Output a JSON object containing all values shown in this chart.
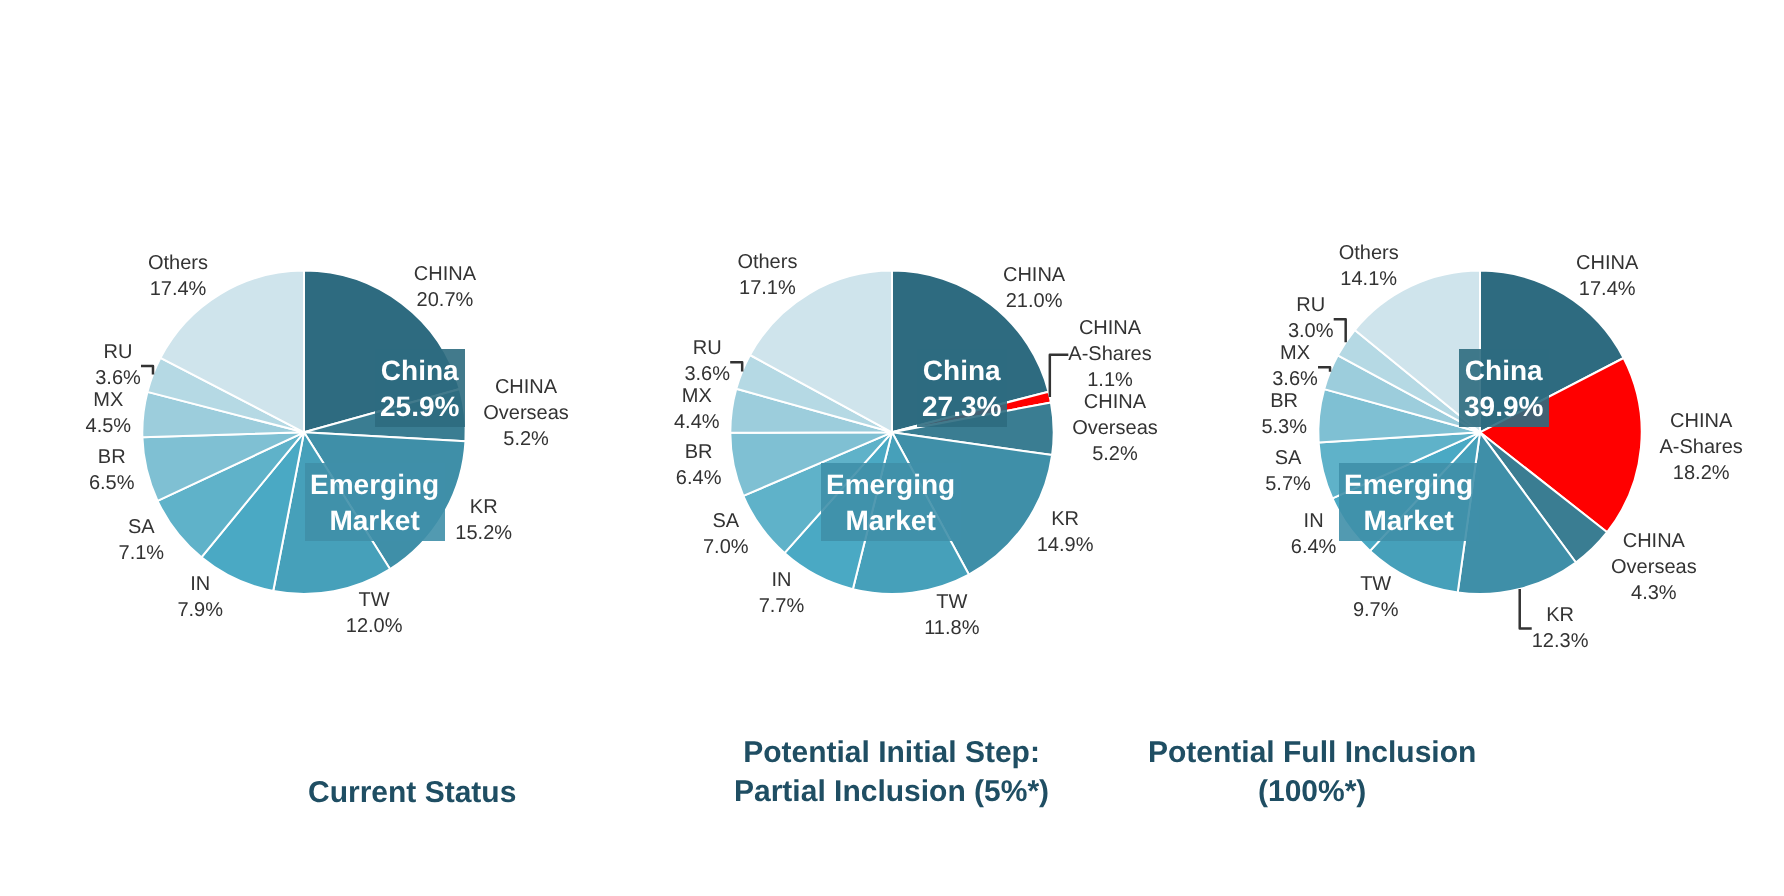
{
  "chart_data": [
    {
      "type": "pie",
      "title": "Current Status",
      "annotations": [
        "China\n25.9%",
        "Emerging\nMarket"
      ],
      "categories": [
        "CHINA",
        "CHINA Overseas",
        "KR",
        "TW",
        "IN",
        "SA",
        "BR",
        "MX",
        "RU",
        "Others"
      ],
      "values": [
        20.7,
        5.2,
        15.2,
        12.0,
        7.9,
        7.1,
        6.5,
        4.5,
        3.6,
        17.4
      ],
      "value_labels": [
        "20.7%",
        "5.2%",
        "15.2%",
        "12.0%",
        "7.9%",
        "7.1%",
        "6.5%",
        "4.5%",
        "3.6%",
        "17.4%"
      ],
      "colors": [
        "#2e6b80",
        "#3a7d92",
        "#3f8fa8",
        "#46a0ba",
        "#4aa9c4",
        "#5fb2c9",
        "#7fc0d3",
        "#9ccddc",
        "#b5d9e4",
        "#cfe4ec"
      ]
    },
    {
      "type": "pie",
      "title": "Potential Initial Step:\nPartial Inclusion (5%*)",
      "annotations": [
        "China\n27.3%",
        "Emerging\nMarket"
      ],
      "categories": [
        "CHINA",
        "CHINA A-Shares",
        "CHINA Overseas",
        "KR",
        "TW",
        "IN",
        "SA",
        "BR",
        "MX",
        "RU",
        "Others"
      ],
      "values": [
        21.0,
        1.1,
        5.2,
        14.9,
        11.8,
        7.7,
        7.0,
        6.4,
        4.4,
        3.6,
        17.1
      ],
      "value_labels": [
        "21.0%",
        "1.1%",
        "5.2%",
        "14.9%",
        "11.8%",
        "7.7%",
        "7.0%",
        "6.4%",
        "4.4%",
        "3.6%",
        "17.1%"
      ],
      "colors": [
        "#2e6b80",
        "#ff0000",
        "#3a7d92",
        "#3f8fa8",
        "#46a0ba",
        "#4aa9c4",
        "#5fb2c9",
        "#7fc0d3",
        "#9ccddc",
        "#b5d9e4",
        "#cfe4ec"
      ]
    },
    {
      "type": "pie",
      "title": "Potential Full Inclusion\n(100%*)",
      "annotations": [
        "China\n39.9%",
        "Emerging\nMarket"
      ],
      "categories": [
        "CHINA",
        "CHINA A-Shares",
        "CHINA Overseas",
        "KR",
        "TW",
        "IN",
        "SA",
        "BR",
        "MX",
        "RU",
        "Others"
      ],
      "values": [
        17.4,
        18.2,
        4.3,
        12.3,
        9.7,
        6.4,
        5.7,
        5.3,
        3.6,
        3.0,
        14.1
      ],
      "value_labels": [
        "17.4%",
        "18.2%",
        "4.3%",
        "12.3%",
        "9.7%",
        "6.4%",
        "5.7%",
        "5.3%",
        "3.6%",
        "3.0%",
        "14.1%"
      ],
      "colors": [
        "#2e6b80",
        "#ff0000",
        "#3a7d92",
        "#3f8fa8",
        "#46a0ba",
        "#4aa9c4",
        "#5fb2c9",
        "#7fc0d3",
        "#9ccddc",
        "#b5d9e4",
        "#cfe4ec"
      ]
    }
  ]
}
